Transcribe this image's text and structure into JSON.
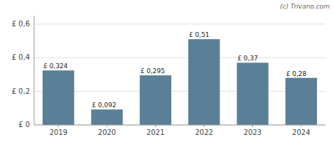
{
  "chart_data": {
    "type": "bar",
    "categories": [
      "2019",
      "2020",
      "2021",
      "2022",
      "2023",
      "2024"
    ],
    "values": [
      0.324,
      0.092,
      0.295,
      0.51,
      0.37,
      0.28
    ],
    "value_labels": [
      "£ 0,324",
      "£ 0,092",
      "£ 0,295",
      "£ 0,51",
      "£ 0,37",
      "£ 0,28"
    ],
    "color": "#5b7f96",
    "ylim": [
      0,
      0.65
    ],
    "yticks": [
      {
        "value": 0.0,
        "label": "£ 0"
      },
      {
        "value": 0.2,
        "label": "£ 0,2"
      },
      {
        "value": 0.4,
        "label": "£ 0,4"
      },
      {
        "value": 0.6,
        "label": "£ 0,6"
      }
    ],
    "grid": true,
    "data_labels": true,
    "annotations": [
      "(c) Trivano.com"
    ]
  }
}
